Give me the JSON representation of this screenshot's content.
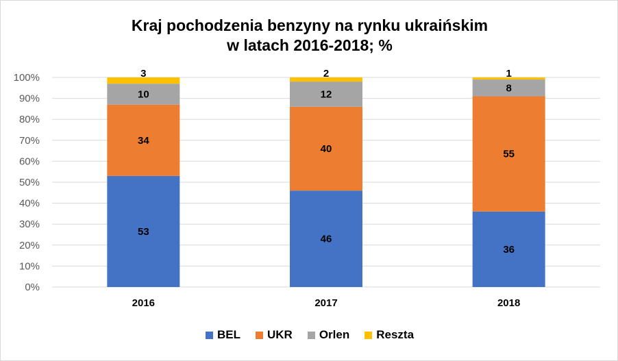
{
  "chart_data": {
    "type": "bar",
    "stacked": true,
    "title_lines": [
      "Kraj pochodzenia benzyny na rynku ukraińskim",
      "w latach 2016-2018; %"
    ],
    "categories": [
      "2016",
      "2017",
      "2018"
    ],
    "series": [
      {
        "name": "BEL",
        "color": "#4472C4",
        "values": [
          53,
          46,
          36
        ]
      },
      {
        "name": "UKR",
        "color": "#ED7D31",
        "values": [
          34,
          40,
          55
        ]
      },
      {
        "name": "Orlen",
        "color": "#A5A5A5",
        "values": [
          10,
          12,
          8
        ]
      },
      {
        "name": "Reszta",
        "color": "#FFC000",
        "values": [
          3,
          2,
          1
        ]
      }
    ],
    "y_ticks": [
      "0%",
      "10%",
      "20%",
      "30%",
      "40%",
      "50%",
      "60%",
      "70%",
      "80%",
      "90%",
      "100%"
    ],
    "ylim": [
      0,
      100
    ],
    "grid": true,
    "legend_position": "bottom"
  }
}
